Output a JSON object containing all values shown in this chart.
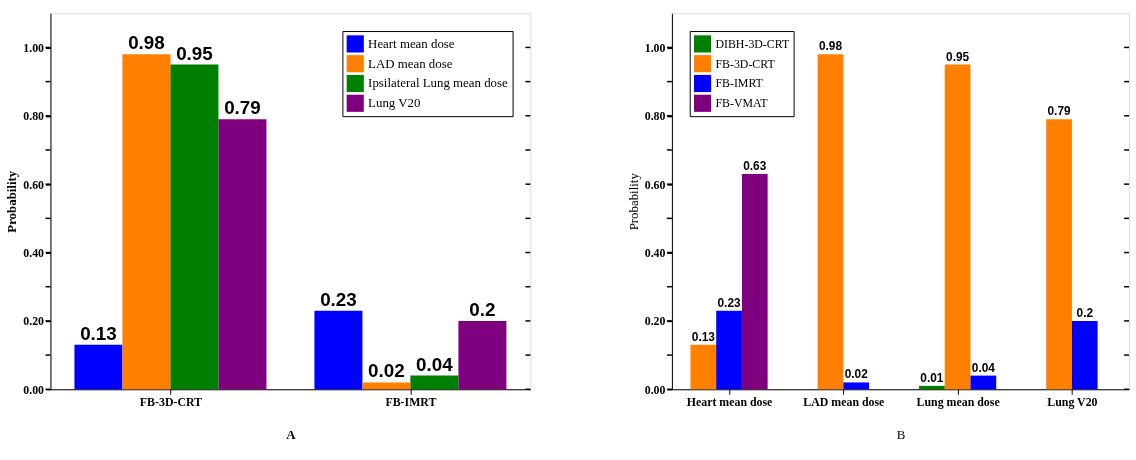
{
  "chart_data": [
    {
      "type": "bar",
      "xlabel": "A",
      "ylabel": "Probability",
      "categories": [
        "FB-3D-CRT",
        "FB-IMRT"
      ],
      "series": [
        {
          "name": "Heart mean dose",
          "color": "#0000ff",
          "values": [
            0.13,
            0.23
          ]
        },
        {
          "name": "LAD mean dose",
          "color": "#ff8000",
          "values": [
            0.98,
            0.02
          ]
        },
        {
          "name": "Ipsilateral Lung mean dose",
          "color": "#007f00",
          "values": [
            0.95,
            0.04
          ]
        },
        {
          "name": "Lung V20",
          "color": "#7f007f",
          "values": [
            0.79,
            0.2
          ]
        }
      ],
      "ylim": [
        0,
        1.1
      ],
      "yticks": [
        {
          "value": 0,
          "label": "0.00"
        },
        {
          "value": 0.1,
          "label": null
        },
        {
          "value": 0.2,
          "label": "0.20"
        },
        {
          "value": 0.3,
          "label": null
        },
        {
          "value": 0.4,
          "label": "0.40"
        },
        {
          "value": 0.5,
          "label": null
        },
        {
          "value": 0.6,
          "label": "0.60"
        },
        {
          "value": 0.7,
          "label": null
        },
        {
          "value": 0.8,
          "label": "0.80"
        },
        {
          "value": 0.9,
          "label": null
        },
        {
          "value": 1.0,
          "label": "1.00"
        }
      ],
      "data_labels": true,
      "grid": false,
      "legend": "top right"
    },
    {
      "type": "bar",
      "xlabel": "B",
      "ylabel": "Probability",
      "categories": [
        "Heart mean dose",
        "LAD mean dose",
        "Lung mean dose",
        "Lung V20"
      ],
      "series": [
        {
          "name": "DIBH-3D-CRT",
          "color": "#007f00",
          "values": [
            null,
            null,
            0.01,
            null
          ]
        },
        {
          "name": "FB-3D-CRT",
          "color": "#ff8000",
          "values": [
            0.13,
            0.98,
            0.95,
            0.79
          ]
        },
        {
          "name": "FB-IMRT",
          "color": "#0000ff",
          "values": [
            0.23,
            0.02,
            0.04,
            0.2
          ]
        },
        {
          "name": "FB-VMAT",
          "color": "#7f007f",
          "values": [
            0.63,
            null,
            null,
            null
          ]
        }
      ],
      "ylim": [
        0,
        1.1
      ],
      "yticks": [
        {
          "value": 0,
          "label": "0.00"
        },
        {
          "value": 0.1,
          "label": null
        },
        {
          "value": 0.2,
          "label": "0.20"
        },
        {
          "value": 0.3,
          "label": null
        },
        {
          "value": 0.4,
          "label": "0.40"
        },
        {
          "value": 0.5,
          "label": null
        },
        {
          "value": 0.6,
          "label": "0.60"
        },
        {
          "value": 0.7,
          "label": null
        },
        {
          "value": 0.8,
          "label": "0.80"
        },
        {
          "value": 0.9,
          "label": null
        },
        {
          "value": 1.0,
          "label": "1.00"
        }
      ],
      "data_labels": true,
      "grid": false,
      "legend": "top left"
    }
  ]
}
